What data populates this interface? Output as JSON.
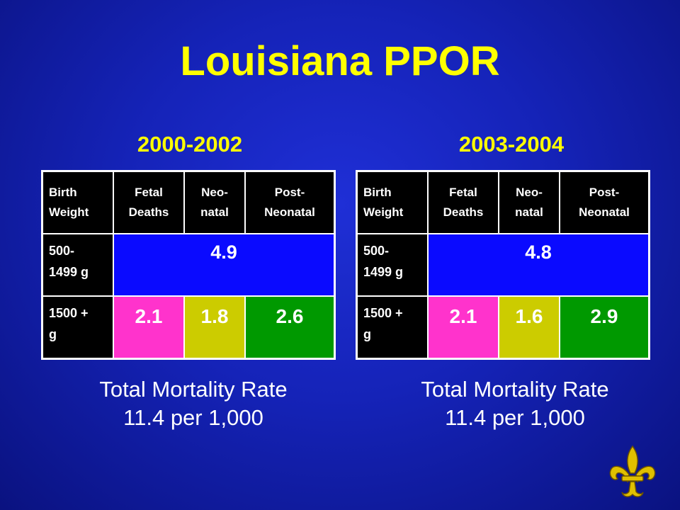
{
  "title": "Louisiana PPOR",
  "headers": {
    "birth_weight_line1": "Birth",
    "birth_weight_line2": "Weight",
    "fetal_line1": "Fetal",
    "fetal_line2": "Deaths",
    "neonatal_line1": "Neo-",
    "neonatal_line2": "natal",
    "post_line1": "Post-",
    "post_line2": "Neonatal"
  },
  "row_labels": {
    "low_line1": "500-",
    "low_line2": "1499 g",
    "high_line1": "1500 +",
    "high_line2": "g"
  },
  "left": {
    "period": "2000-2002",
    "vlbw": "4.9",
    "fetal": "2.1",
    "neonatal": "1.8",
    "post_neonatal": "2.6",
    "total_label": "Total Mortality Rate",
    "total_value": "11.4 per 1,000"
  },
  "right": {
    "period": "2003-2004",
    "vlbw": "4.8",
    "fetal": "2.1",
    "neonatal": "1.6",
    "post_neonatal": "2.9",
    "total_label": "Total Mortality Rate",
    "total_value": "11.4 per 1,000"
  },
  "colors": {
    "background": "#1523b8",
    "title": "#ffff00",
    "vlbw_cell": "#0a0aff",
    "fetal_cell": "#ff33cc",
    "neonatal_cell": "#cccc00",
    "post_neonatal_cell": "#009900",
    "logo": "#e0c000"
  },
  "logo_icon": "fleur-de-lis-icon"
}
